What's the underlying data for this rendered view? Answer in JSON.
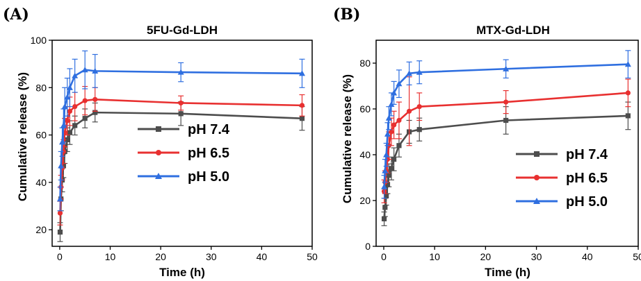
{
  "panels": [
    {
      "label": "(A)"
    },
    {
      "label": "(B)"
    }
  ],
  "chart_data": [
    {
      "type": "line",
      "title": "5FU-Gd-LDH",
      "xlabel": "Time (h)",
      "ylabel": "Cumulative release (%)",
      "xlim": [
        -1.5,
        50
      ],
      "ylim": [
        13,
        100
      ],
      "xticks": [
        0,
        10,
        20,
        30,
        40,
        50
      ],
      "yticks": [
        20,
        40,
        60,
        80,
        100
      ],
      "legend_position": "center-right",
      "x": [
        0.08,
        0.25,
        0.5,
        0.75,
        1,
        1.5,
        2,
        3,
        5,
        7,
        24,
        48
      ],
      "series": [
        {
          "name": "pH 7.4",
          "color": "#4d4d4d",
          "marker": "square",
          "values": [
            19,
            33,
            41,
            47,
            53,
            58,
            61,
            64,
            67,
            69.5,
            69,
            67
          ],
          "errors": [
            4,
            5,
            5,
            5,
            5,
            5,
            5,
            4,
            4,
            4,
            5,
            5
          ]
        },
        {
          "name": "pH 6.5",
          "color": "#e83030",
          "marker": "circle",
          "values": [
            27,
            38,
            46,
            53,
            61,
            66,
            70,
            72,
            74.5,
            75,
            73.5,
            72.5
          ],
          "errors": [
            5,
            5,
            5,
            5,
            6,
            6,
            6,
            6,
            6,
            5,
            3,
            4.5
          ]
        },
        {
          "name": "pH 5.0",
          "color": "#2f6fe0",
          "marker": "triangle",
          "values": [
            33,
            47,
            57,
            64,
            72,
            76,
            80,
            85,
            87.5,
            87,
            86.5,
            86
          ],
          "errors": [
            5,
            6,
            6,
            7,
            8,
            8,
            8,
            7,
            8,
            7,
            4,
            6
          ]
        }
      ]
    },
    {
      "type": "line",
      "title": "MTX-Gd-LDH",
      "xlabel": "Time (h)",
      "ylabel": "Cumulative release (%)",
      "xlim": [
        -1.5,
        50
      ],
      "ylim": [
        0,
        90
      ],
      "xticks": [
        0,
        10,
        20,
        30,
        40,
        50
      ],
      "yticks": [
        0,
        20,
        40,
        60,
        80
      ],
      "legend_position": "bottom-right",
      "x": [
        0.08,
        0.25,
        0.5,
        0.75,
        1,
        1.5,
        2,
        3,
        5,
        7,
        24,
        48
      ],
      "series": [
        {
          "name": "pH 7.4",
          "color": "#4d4d4d",
          "marker": "square",
          "values": [
            12,
            17,
            22,
            27,
            31,
            34,
            38,
            44,
            50,
            51,
            55,
            57
          ],
          "errors": [
            3,
            4,
            4,
            4,
            5,
            5,
            5,
            5,
            5,
            5,
            6,
            6
          ]
        },
        {
          "name": "pH 6.5",
          "color": "#e83030",
          "marker": "circle",
          "values": [
            24,
            28,
            33,
            38,
            44,
            50,
            53,
            55,
            59,
            61,
            63,
            67
          ],
          "errors": [
            5,
            5,
            5,
            6,
            6,
            6,
            6,
            8,
            15,
            6,
            5,
            6
          ]
        },
        {
          "name": "pH 5.0",
          "color": "#2f6fe0",
          "marker": "triangle",
          "values": [
            26,
            33,
            40,
            49,
            56,
            62,
            67,
            71,
            75.5,
            76,
            77.5,
            79.5
          ],
          "errors": [
            5,
            5,
            5,
            5,
            5,
            5,
            5,
            6,
            5,
            5,
            4,
            6
          ]
        }
      ]
    }
  ]
}
